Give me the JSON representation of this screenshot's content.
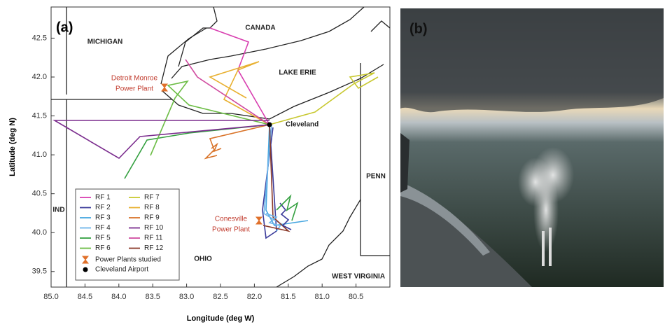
{
  "map": {
    "panel_label": "(a)",
    "xlabel": "Longitude (deg W)",
    "ylabel": "Latitude (deg N)",
    "xlim": [
      85.0,
      80.0
    ],
    "ylim": [
      39.3,
      42.9
    ],
    "xticks": [
      {
        "value": 85,
        "label": "85.0"
      },
      {
        "value": 84.5,
        "label": "84.5"
      },
      {
        "value": 84,
        "label": "84.0"
      },
      {
        "value": 83.5,
        "label": "83.5"
      },
      {
        "value": 83,
        "label": "83.0"
      },
      {
        "value": 82.5,
        "label": "82.5"
      },
      {
        "value": 82,
        "label": "82.0"
      },
      {
        "value": 81.5,
        "label": "81.5"
      },
      {
        "value": 81,
        "label": "81.0"
      },
      {
        "value": 80.5,
        "label": "80.5"
      }
    ],
    "yticks": [
      {
        "value": 39.5,
        "label": "39.5"
      },
      {
        "value": 40,
        "label": "40.0"
      },
      {
        "value": 40.5,
        "label": "40.5"
      },
      {
        "value": 41,
        "label": "41.0"
      },
      {
        "value": 41.5,
        "label": "41.5"
      },
      {
        "value": 42,
        "label": "42.0"
      },
      {
        "value": 42.5,
        "label": "42.5"
      }
    ],
    "places": [
      "MICHIGAN",
      "CANADA",
      "LAKE ERIE",
      "Cleveland",
      "PENN",
      "IND",
      "OHIO",
      "WEST VIRGINIA"
    ],
    "plants": [
      [
        "Detroit Monroe",
        "Power Plant"
      ],
      [
        "Conesville",
        "Power Plant"
      ]
    ],
    "legend": [
      {
        "name": "RF 1",
        "color": "#d83fb0"
      },
      {
        "name": "RF 2",
        "color": "#3b3b9a"
      },
      {
        "name": "RF 3",
        "color": "#46a6e0"
      },
      {
        "name": "RF 4",
        "color": "#6cb4ea"
      },
      {
        "name": "RF 5",
        "color": "#34a040"
      },
      {
        "name": "RF 6",
        "color": "#6cbd45"
      },
      {
        "name": "RF 7",
        "color": "#c8c830"
      },
      {
        "name": "RF 8",
        "color": "#e8b030"
      },
      {
        "name": "RF 9",
        "color": "#d9742a"
      },
      {
        "name": "RF 10",
        "color": "#7b2d8e"
      },
      {
        "name": "RF 11",
        "color": "#d04ca0"
      },
      {
        "name": "RF 12",
        "color": "#8b3a2a"
      }
    ],
    "legend_markers": [
      {
        "name": "Power Plants studied",
        "color": "#e0702a"
      },
      {
        "name": "Cleveland Airport",
        "color": "#000000"
      }
    ]
  },
  "photo": {
    "panel_label": "(b)"
  }
}
